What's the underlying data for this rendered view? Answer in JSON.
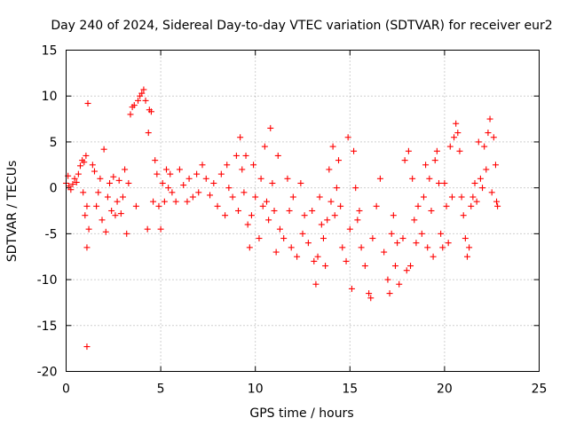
{
  "chart_data": {
    "type": "scatter",
    "title": "Day 240 of 2024, Sidereal Day-to-day VTEC variation (SDTVAR) for receiver eur2",
    "xlabel": "GPS time / hours",
    "ylabel": "SDTVAR / TECUs",
    "xlim": [
      0,
      25
    ],
    "ylim": [
      -20,
      15
    ],
    "xticks": [
      "0",
      "5",
      "10",
      "15",
      "20",
      "25"
    ],
    "yticks": [
      "15",
      "10",
      "5",
      "0",
      "-5",
      "-10",
      "-15",
      "-20"
    ],
    "grid": true,
    "marker": "+",
    "series_color": "#ff0000",
    "series": [
      {
        "name": "SDTVAR",
        "points": [
          [
            0.0,
            0.5
          ],
          [
            0.1,
            1.3
          ],
          [
            0.15,
            0.2
          ],
          [
            0.25,
            -0.2
          ],
          [
            0.35,
            0.4
          ],
          [
            0.45,
            1.0
          ],
          [
            0.55,
            0.6
          ],
          [
            0.65,
            1.5
          ],
          [
            0.75,
            2.4
          ],
          [
            0.85,
            3.0
          ],
          [
            0.9,
            -0.5
          ],
          [
            0.95,
            2.8
          ],
          [
            1.0,
            -3.0
          ],
          [
            1.05,
            3.5
          ],
          [
            1.1,
            -2.0
          ],
          [
            1.15,
            9.2
          ],
          [
            1.1,
            -6.5
          ],
          [
            1.1,
            -17.3
          ],
          [
            1.2,
            -4.5
          ],
          [
            1.4,
            2.5
          ],
          [
            1.5,
            1.8
          ],
          [
            1.6,
            -2.0
          ],
          [
            1.7,
            -0.5
          ],
          [
            1.8,
            1.0
          ],
          [
            1.9,
            -3.5
          ],
          [
            2.0,
            4.2
          ],
          [
            2.1,
            -4.8
          ],
          [
            2.2,
            -1.0
          ],
          [
            2.3,
            0.5
          ],
          [
            2.4,
            -2.5
          ],
          [
            2.5,
            1.2
          ],
          [
            2.6,
            -3.0
          ],
          [
            2.7,
            -1.5
          ],
          [
            2.8,
            0.8
          ],
          [
            2.9,
            -2.8
          ],
          [
            3.0,
            -1.0
          ],
          [
            3.1,
            2.0
          ],
          [
            3.2,
            -5.0
          ],
          [
            3.3,
            0.5
          ],
          [
            3.4,
            8.0
          ],
          [
            3.5,
            8.8
          ],
          [
            3.6,
            9.0
          ],
          [
            3.7,
            -2.0
          ],
          [
            3.8,
            9.5
          ],
          [
            3.9,
            10.0
          ],
          [
            4.0,
            10.3
          ],
          [
            4.1,
            10.7
          ],
          [
            4.2,
            9.5
          ],
          [
            4.3,
            -4.5
          ],
          [
            4.35,
            6.0
          ],
          [
            4.4,
            8.5
          ],
          [
            4.5,
            8.3
          ],
          [
            4.6,
            -1.5
          ],
          [
            4.7,
            3.0
          ],
          [
            4.8,
            1.5
          ],
          [
            4.9,
            -2.0
          ],
          [
            5.0,
            -4.5
          ],
          [
            5.1,
            0.5
          ],
          [
            5.2,
            -1.5
          ],
          [
            5.3,
            2.0
          ],
          [
            5.4,
            0.0
          ],
          [
            5.5,
            1.5
          ],
          [
            5.6,
            -0.5
          ],
          [
            5.8,
            -1.5
          ],
          [
            6.0,
            2.0
          ],
          [
            6.2,
            0.3
          ],
          [
            6.4,
            -1.5
          ],
          [
            6.5,
            1.0
          ],
          [
            6.7,
            -1.0
          ],
          [
            6.9,
            1.5
          ],
          [
            7.0,
            -0.5
          ],
          [
            7.2,
            2.5
          ],
          [
            7.4,
            1.0
          ],
          [
            7.6,
            -0.8
          ],
          [
            7.8,
            0.5
          ],
          [
            8.0,
            -2.0
          ],
          [
            8.2,
            1.5
          ],
          [
            8.4,
            -3.0
          ],
          [
            8.5,
            2.5
          ],
          [
            8.6,
            0.0
          ],
          [
            8.8,
            -1.0
          ],
          [
            9.0,
            3.5
          ],
          [
            9.1,
            -2.5
          ],
          [
            9.2,
            5.5
          ],
          [
            9.3,
            2.0
          ],
          [
            9.4,
            -0.5
          ],
          [
            9.5,
            3.5
          ],
          [
            9.6,
            -4.0
          ],
          [
            9.7,
            -6.5
          ],
          [
            9.8,
            -3.0
          ],
          [
            9.9,
            2.5
          ],
          [
            10.0,
            -1.0
          ],
          [
            10.2,
            -5.5
          ],
          [
            10.3,
            1.0
          ],
          [
            10.4,
            -2.0
          ],
          [
            10.5,
            4.5
          ],
          [
            10.6,
            -1.5
          ],
          [
            10.7,
            -3.5
          ],
          [
            10.8,
            6.5
          ],
          [
            10.9,
            0.5
          ],
          [
            11.0,
            -2.5
          ],
          [
            11.1,
            -7.0
          ],
          [
            11.2,
            3.5
          ],
          [
            11.3,
            -4.5
          ],
          [
            11.5,
            -5.5
          ],
          [
            11.7,
            1.0
          ],
          [
            11.8,
            -2.5
          ],
          [
            11.9,
            -6.5
          ],
          [
            12.0,
            -1.0
          ],
          [
            12.2,
            -7.5
          ],
          [
            12.4,
            0.5
          ],
          [
            12.5,
            -5.0
          ],
          [
            12.6,
            -3.0
          ],
          [
            12.8,
            -6.0
          ],
          [
            13.0,
            -2.5
          ],
          [
            13.1,
            -8.0
          ],
          [
            13.2,
            -10.5
          ],
          [
            13.3,
            -7.5
          ],
          [
            13.4,
            -1.0
          ],
          [
            13.5,
            -4.0
          ],
          [
            13.6,
            -5.5
          ],
          [
            13.7,
            -8.5
          ],
          [
            13.8,
            -3.5
          ],
          [
            13.9,
            2.0
          ],
          [
            14.0,
            -1.5
          ],
          [
            14.1,
            4.5
          ],
          [
            14.2,
            -3.0
          ],
          [
            14.3,
            0.0
          ],
          [
            14.4,
            3.0
          ],
          [
            14.5,
            -2.0
          ],
          [
            14.6,
            -6.5
          ],
          [
            14.8,
            -8.0
          ],
          [
            14.9,
            5.5
          ],
          [
            15.0,
            -4.5
          ],
          [
            15.1,
            -11.0
          ],
          [
            15.2,
            4.0
          ],
          [
            15.3,
            0.0
          ],
          [
            15.4,
            -3.5
          ],
          [
            15.5,
            -2.5
          ],
          [
            15.6,
            -6.5
          ],
          [
            15.8,
            -8.5
          ],
          [
            16.0,
            -11.5
          ],
          [
            16.1,
            -12.0
          ],
          [
            16.2,
            -5.5
          ],
          [
            16.4,
            -2.0
          ],
          [
            16.6,
            1.0
          ],
          [
            16.8,
            -7.0
          ],
          [
            17.0,
            -10.0
          ],
          [
            17.1,
            -11.5
          ],
          [
            17.2,
            -5.0
          ],
          [
            17.3,
            -3.0
          ],
          [
            17.4,
            -8.5
          ],
          [
            17.5,
            -6.0
          ],
          [
            17.6,
            -10.5
          ],
          [
            17.8,
            -5.5
          ],
          [
            17.9,
            3.0
          ],
          [
            18.0,
            -9.0
          ],
          [
            18.1,
            4.0
          ],
          [
            18.2,
            -8.5
          ],
          [
            18.3,
            1.0
          ],
          [
            18.4,
            -3.5
          ],
          [
            18.5,
            -6.0
          ],
          [
            18.6,
            -2.0
          ],
          [
            18.8,
            -5.0
          ],
          [
            18.9,
            -1.0
          ],
          [
            19.0,
            2.5
          ],
          [
            19.1,
            -6.5
          ],
          [
            19.2,
            1.0
          ],
          [
            19.3,
            -2.5
          ],
          [
            19.4,
            -7.5
          ],
          [
            19.5,
            3.0
          ],
          [
            19.6,
            4.0
          ],
          [
            19.7,
            0.5
          ],
          [
            19.8,
            -5.0
          ],
          [
            19.9,
            -6.5
          ],
          [
            20.0,
            0.5
          ],
          [
            20.1,
            -2.0
          ],
          [
            20.2,
            -6.0
          ],
          [
            20.3,
            4.5
          ],
          [
            20.4,
            -1.0
          ],
          [
            20.5,
            5.5
          ],
          [
            20.6,
            7.0
          ],
          [
            20.7,
            6.0
          ],
          [
            20.8,
            4.0
          ],
          [
            20.9,
            -1.0
          ],
          [
            21.0,
            -3.0
          ],
          [
            21.1,
            -5.5
          ],
          [
            21.2,
            -7.5
          ],
          [
            21.3,
            -6.5
          ],
          [
            21.4,
            -2.0
          ],
          [
            21.5,
            -1.0
          ],
          [
            21.6,
            0.5
          ],
          [
            21.7,
            -1.5
          ],
          [
            21.8,
            5.0
          ],
          [
            21.9,
            1.0
          ],
          [
            22.0,
            0.0
          ],
          [
            22.1,
            4.5
          ],
          [
            22.2,
            2.0
          ],
          [
            22.3,
            6.0
          ],
          [
            22.4,
            7.5
          ],
          [
            22.5,
            -0.5
          ],
          [
            22.6,
            5.5
          ],
          [
            22.7,
            2.5
          ],
          [
            22.75,
            -1.5
          ],
          [
            22.8,
            -2.0
          ]
        ]
      }
    ]
  }
}
